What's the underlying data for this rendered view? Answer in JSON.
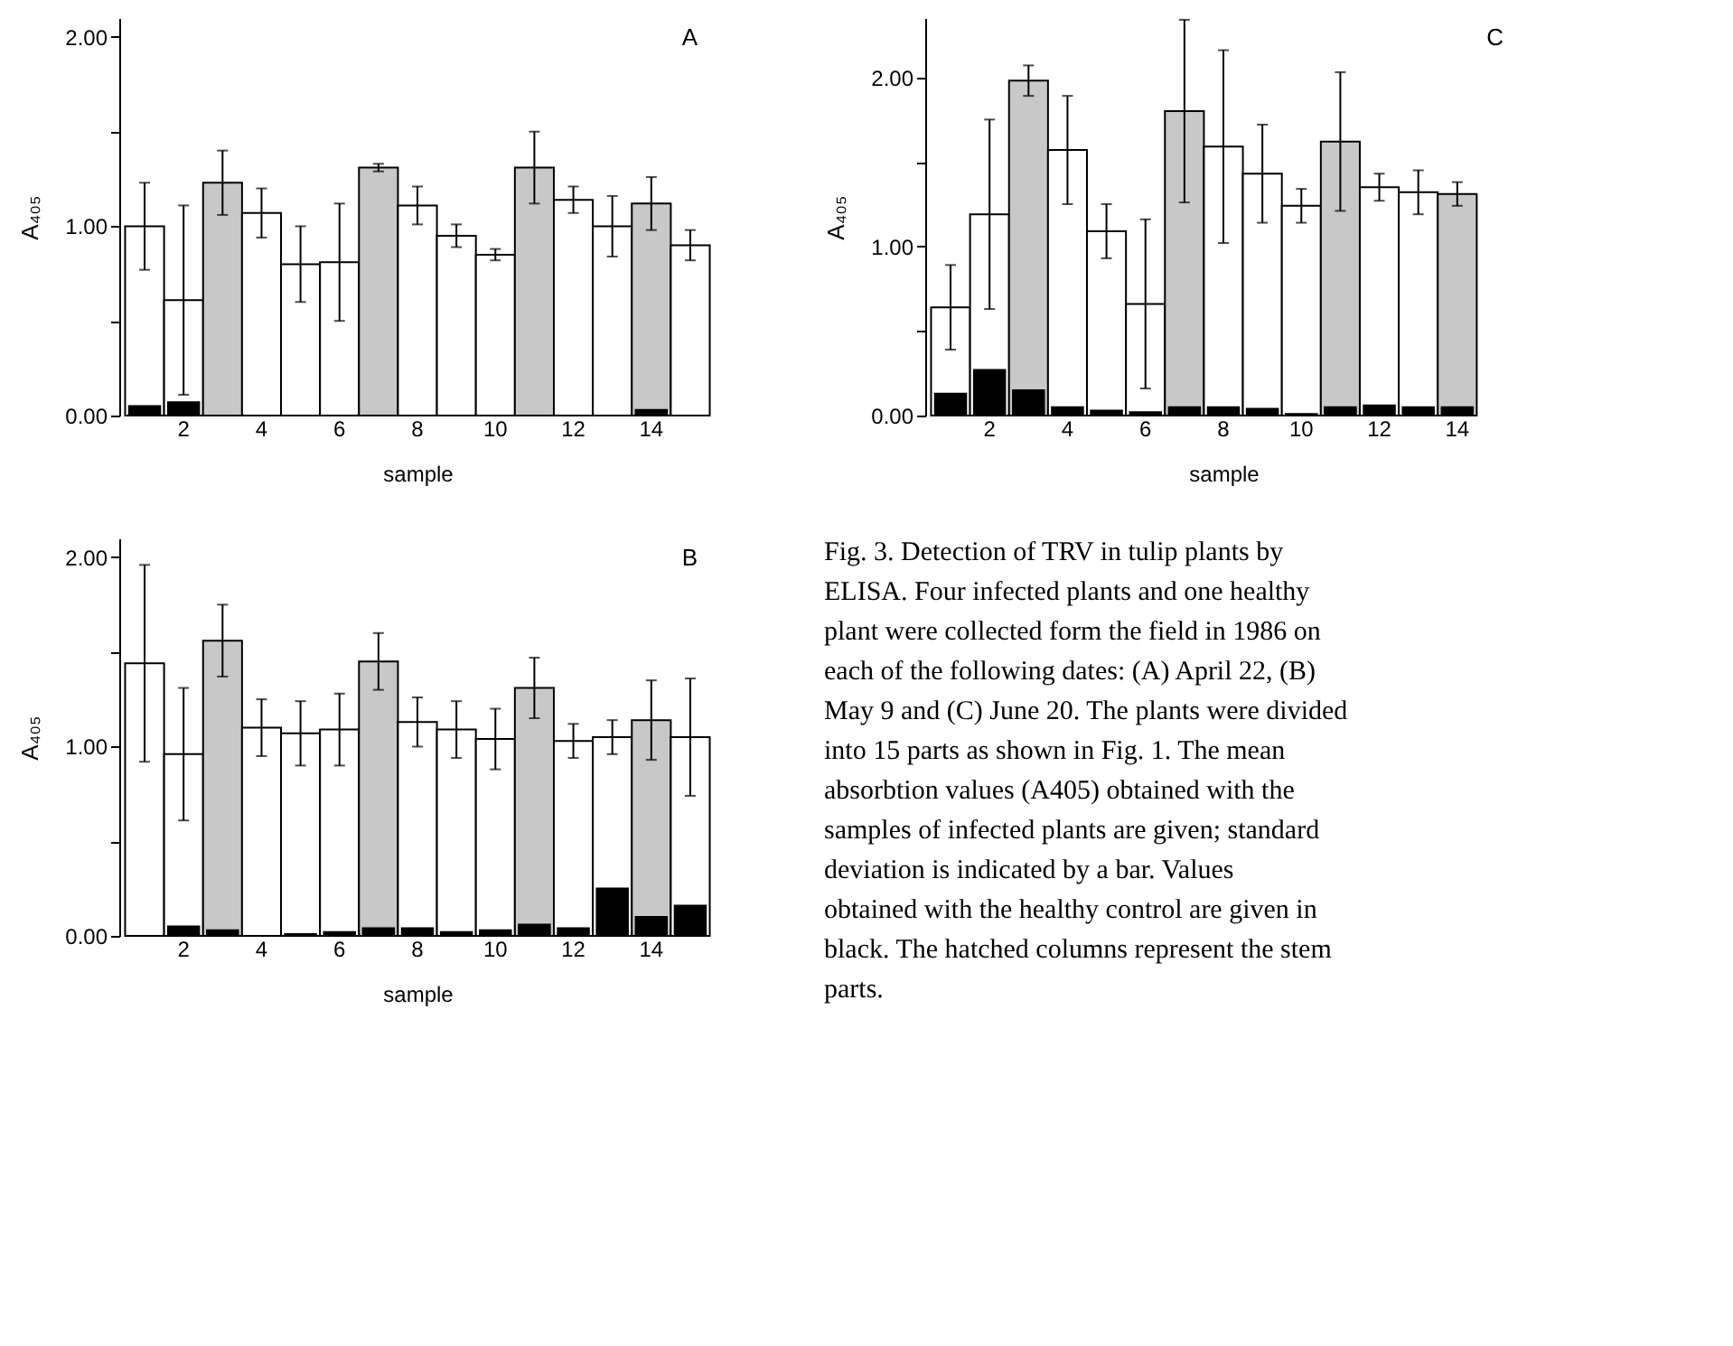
{
  "chart_data": [
    {
      "type": "bar",
      "title": "A",
      "xlabel": "sample",
      "ylabel": "A₄₀₅",
      "grid": false,
      "categories": [
        null,
        "2",
        null,
        "4",
        null,
        "6",
        null,
        "8",
        null,
        "10",
        null,
        "12",
        null,
        "14",
        null
      ],
      "ylim": [
        0,
        2.1
      ],
      "yticks": [
        {
          "value": 0,
          "label": "0.00"
        },
        {
          "value": 0.5,
          "label": null
        },
        {
          "value": 1,
          "label": "1.00"
        },
        {
          "value": 1.5,
          "label": null
        },
        {
          "value": 2,
          "label": "2.00"
        }
      ],
      "series": [
        {
          "colors": [
            "#ffffff",
            "#ffffff",
            "#c8c8c8",
            "#ffffff",
            "#ffffff",
            "#ffffff",
            "#c8c8c8",
            "#ffffff",
            "#ffffff",
            "#ffffff",
            "#c8c8c8",
            "#ffffff",
            "#ffffff",
            "#c8c8c8",
            "#ffffff"
          ],
          "values": [
            1.0,
            0.61,
            1.23,
            1.07,
            0.8,
            0.81,
            1.31,
            1.11,
            0.95,
            0.85,
            1.31,
            1.14,
            1.0,
            1.12,
            0.9
          ],
          "errors": [
            0.23,
            0.5,
            0.17,
            0.13,
            0.2,
            0.31,
            0.02,
            0.1,
            0.06,
            0.03,
            0.19,
            0.07,
            0.16,
            0.14,
            0.08
          ]
        },
        {
          "color": "#000000",
          "values": [
            0.05,
            0.07,
            0,
            0,
            0,
            0,
            0,
            0,
            0,
            0,
            0,
            0,
            0,
            0.03,
            0
          ]
        }
      ]
    },
    {
      "type": "bar",
      "title": "C",
      "xlabel": "sample",
      "ylabel": "A₄₀₅",
      "grid": false,
      "categories": [
        null,
        "2",
        null,
        "4",
        null,
        "6",
        null,
        "8",
        null,
        "10",
        null,
        "12",
        null,
        "14",
        null
      ],
      "ylim": [
        0,
        2.35
      ],
      "yticks": [
        {
          "value": 0,
          "label": "0.00"
        },
        {
          "value": 0.5,
          "label": null
        },
        {
          "value": 1,
          "label": "1.00"
        },
        {
          "value": 1.5,
          "label": null
        },
        {
          "value": 2,
          "label": "2.00"
        }
      ],
      "series": [
        {
          "colors": [
            "#ffffff",
            "#ffffff",
            "#c8c8c8",
            "#ffffff",
            "#ffffff",
            "#ffffff",
            "#c8c8c8",
            "#ffffff",
            "#ffffff",
            "#ffffff",
            "#c8c8c8",
            "#ffffff",
            "#ffffff",
            "#c8c8c8",
            "#ffffff"
          ],
          "values": [
            0.64,
            1.19,
            1.98,
            1.57,
            1.09,
            0.66,
            1.8,
            1.59,
            1.43,
            1.24,
            1.62,
            1.35,
            1.32,
            1.31,
            null
          ],
          "errors": [
            0.25,
            0.56,
            0.09,
            0.32,
            0.16,
            0.5,
            0.54,
            0.57,
            0.29,
            0.1,
            0.41,
            0.08,
            0.13,
            0.07,
            null
          ]
        },
        {
          "color": "#000000",
          "values": [
            0.13,
            0.27,
            0.15,
            0.05,
            0.03,
            0.02,
            0.05,
            0.05,
            0.04,
            0.01,
            0.05,
            0.06,
            0.05,
            0.05,
            null
          ]
        }
      ]
    },
    {
      "type": "bar",
      "title": "B",
      "xlabel": "sample",
      "ylabel": "A₄₀₅",
      "grid": false,
      "categories": [
        null,
        "2",
        null,
        "4",
        null,
        "6",
        null,
        "8",
        null,
        "10",
        null,
        "12",
        null,
        "14",
        null
      ],
      "ylim": [
        0,
        2.1
      ],
      "yticks": [
        {
          "value": 0,
          "label": "0.00"
        },
        {
          "value": 0.5,
          "label": null
        },
        {
          "value": 1,
          "label": "1.00"
        },
        {
          "value": 1.5,
          "label": null
        },
        {
          "value": 2,
          "label": "2.00"
        }
      ],
      "series": [
        {
          "colors": [
            "#ffffff",
            "#ffffff",
            "#c8c8c8",
            "#ffffff",
            "#ffffff",
            "#ffffff",
            "#c8c8c8",
            "#ffffff",
            "#ffffff",
            "#ffffff",
            "#c8c8c8",
            "#ffffff",
            "#ffffff",
            "#c8c8c8",
            "#ffffff"
          ],
          "values": [
            1.44,
            0.96,
            1.56,
            1.1,
            1.07,
            1.09,
            1.45,
            1.13,
            1.09,
            1.04,
            1.31,
            1.03,
            1.05,
            1.14,
            1.05
          ],
          "errors": [
            0.52,
            0.35,
            0.19,
            0.15,
            0.17,
            0.19,
            0.15,
            0.13,
            0.15,
            0.16,
            0.16,
            0.09,
            0.09,
            0.21,
            0.31
          ]
        },
        {
          "color": "#000000",
          "values": [
            0,
            0.05,
            0.03,
            0,
            0.01,
            0.02,
            0.04,
            0.04,
            0.02,
            0.03,
            0.06,
            0.04,
            0.25,
            0.1,
            0.16
          ]
        }
      ]
    },
    {
      "type": "other",
      "annotations": [
        "Fig. 3. Detection of TRV in tulip plants by ELISA. Four infected plants and one healthy plant were collected form the field in 1986 on each of the following dates: (A) April 22, (B) May 9 and (C) June 20. The plants were divided into 15 parts as shown in Fig. 1. The mean absorbtion values (A405) obtained with the samples of infected plants are given; standard deviation is indicated by a bar. Values obtained with the healthy control are given in black. The hatched columns represent the stem parts."
      ]
    }
  ]
}
